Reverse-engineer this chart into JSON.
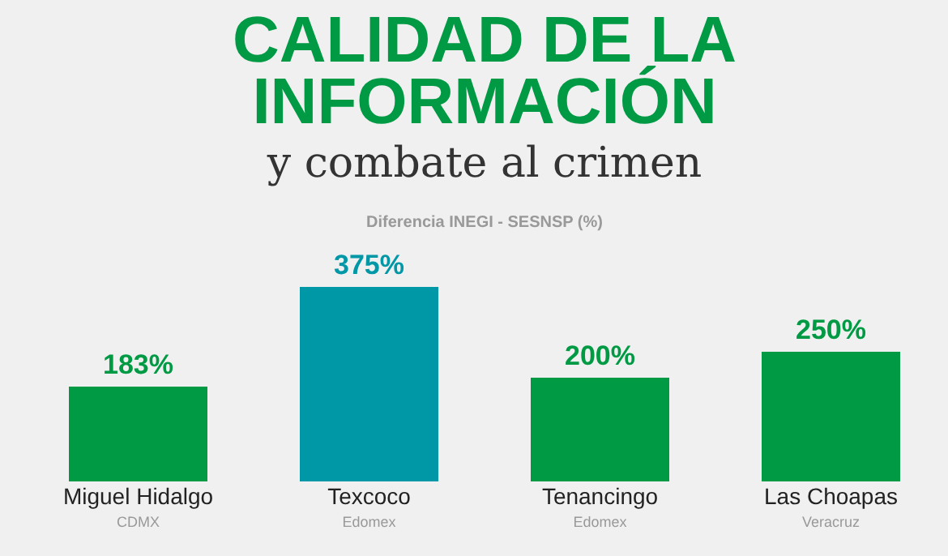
{
  "chart_data": {
    "type": "bar",
    "title": [
      "CALIDAD DE LA",
      "INFORMACIÓN"
    ],
    "subtitle": "y combate al crimen",
    "annotations": [
      "Diferencia INEGI - SESNSP (%)"
    ],
    "categories": [
      "Miguel Hidalgo\nCDMX",
      "Texcoco\nEdomex",
      "Tenancingo\nEdomex",
      "Las Choapas\nVeracruz"
    ],
    "values": [
      183,
      375,
      200,
      250
    ],
    "colors": [
      "#009a44",
      "#0097a7",
      "#009a44",
      "#009a44"
    ],
    "value_labels": [
      "183%",
      "375%",
      "200%",
      "250%"
    ]
  }
}
